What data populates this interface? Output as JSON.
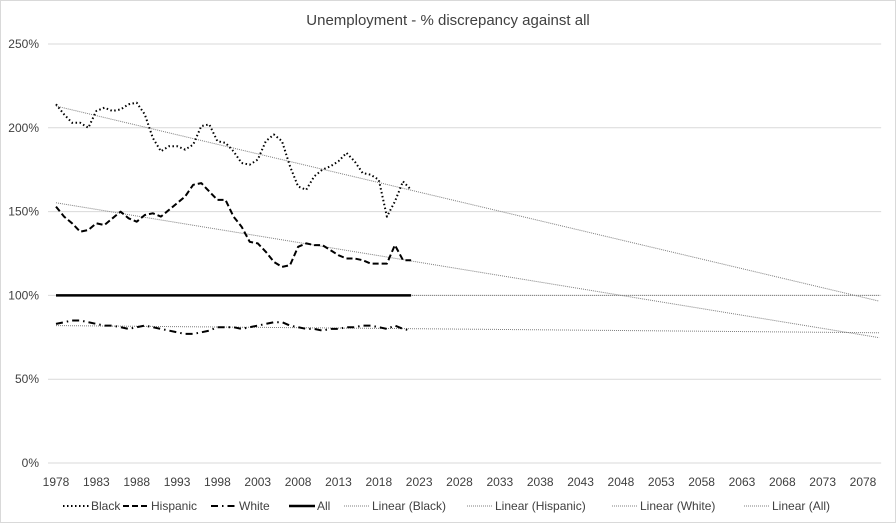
{
  "chart_data": {
    "type": "line",
    "title": "Unemployment - % discrepancy against all",
    "xlabel": "",
    "ylabel": "",
    "ylim": [
      0,
      250
    ],
    "yticks": [
      "0%",
      "50%",
      "100%",
      "150%",
      "200%",
      "250%"
    ],
    "ytick_values": [
      0,
      50,
      100,
      150,
      200,
      250
    ],
    "xticks": [
      "1978",
      "1983",
      "1988",
      "1993",
      "1998",
      "2003",
      "2008",
      "2013",
      "2018",
      "2023",
      "2028",
      "2033",
      "2038",
      "2043",
      "2048",
      "2053",
      "2058",
      "2063",
      "2068",
      "2073",
      "2078"
    ],
    "x_range": [
      1978,
      2080
    ],
    "x_start": 1978,
    "grid": true,
    "legend_position": "bottom",
    "series": [
      {
        "name": "Black",
        "style": "dotted",
        "values": [
          214,
          208,
          203,
          203,
          200,
          210,
          212,
          210,
          211,
          214,
          215,
          208,
          194,
          186,
          189,
          189,
          187,
          190,
          201,
          202,
          192,
          191,
          186,
          179,
          178,
          181,
          192,
          196,
          192,
          177,
          165,
          163,
          171,
          175,
          177,
          180,
          185,
          180,
          173,
          172,
          169,
          147,
          156,
          168,
          163
        ]
      },
      {
        "name": "Hispanic",
        "style": "dashed",
        "values": [
          153,
          147,
          143,
          138,
          139,
          143,
          142,
          146,
          150,
          146,
          144,
          148,
          149,
          147,
          151,
          155,
          159,
          166,
          167,
          162,
          157,
          157,
          147,
          141,
          132,
          131,
          126,
          120,
          117,
          118,
          129,
          131,
          130,
          130,
          127,
          124,
          122,
          122,
          121,
          119,
          119,
          119,
          130,
          121,
          121
        ]
      },
      {
        "name": "White",
        "style": "dashdot",
        "values": [
          83,
          84,
          85,
          85,
          84,
          83,
          82,
          82,
          81,
          80,
          81,
          82,
          81,
          80,
          79,
          78,
          77,
          77,
          78,
          79,
          81,
          81,
          81,
          80,
          81,
          82,
          83,
          84,
          84,
          82,
          81,
          80,
          80,
          79,
          80,
          80,
          81,
          81,
          82,
          82,
          81,
          80,
          82,
          80,
          79
        ]
      },
      {
        "name": "All",
        "style": "solid",
        "values": [
          100,
          100,
          100,
          100,
          100,
          100,
          100,
          100,
          100,
          100,
          100,
          100,
          100,
          100,
          100,
          100,
          100,
          100,
          100,
          100,
          100,
          100,
          100,
          100,
          100,
          100,
          100,
          100,
          100,
          100,
          100,
          100,
          100,
          100,
          100,
          100,
          100,
          100,
          100,
          100,
          100,
          100,
          100,
          100,
          100
        ]
      }
    ],
    "trendlines": [
      {
        "name": "Linear (Black)",
        "of": "Black"
      },
      {
        "name": "Linear (Hispanic)",
        "of": "Hispanic"
      },
      {
        "name": "Linear (White)",
        "of": "White"
      },
      {
        "name": "Linear (All)",
        "of": "All"
      }
    ],
    "colors": {
      "series": "#000000",
      "trend": "#7f7f7f",
      "grid": "#d9d9d9",
      "text": "#404040"
    }
  }
}
